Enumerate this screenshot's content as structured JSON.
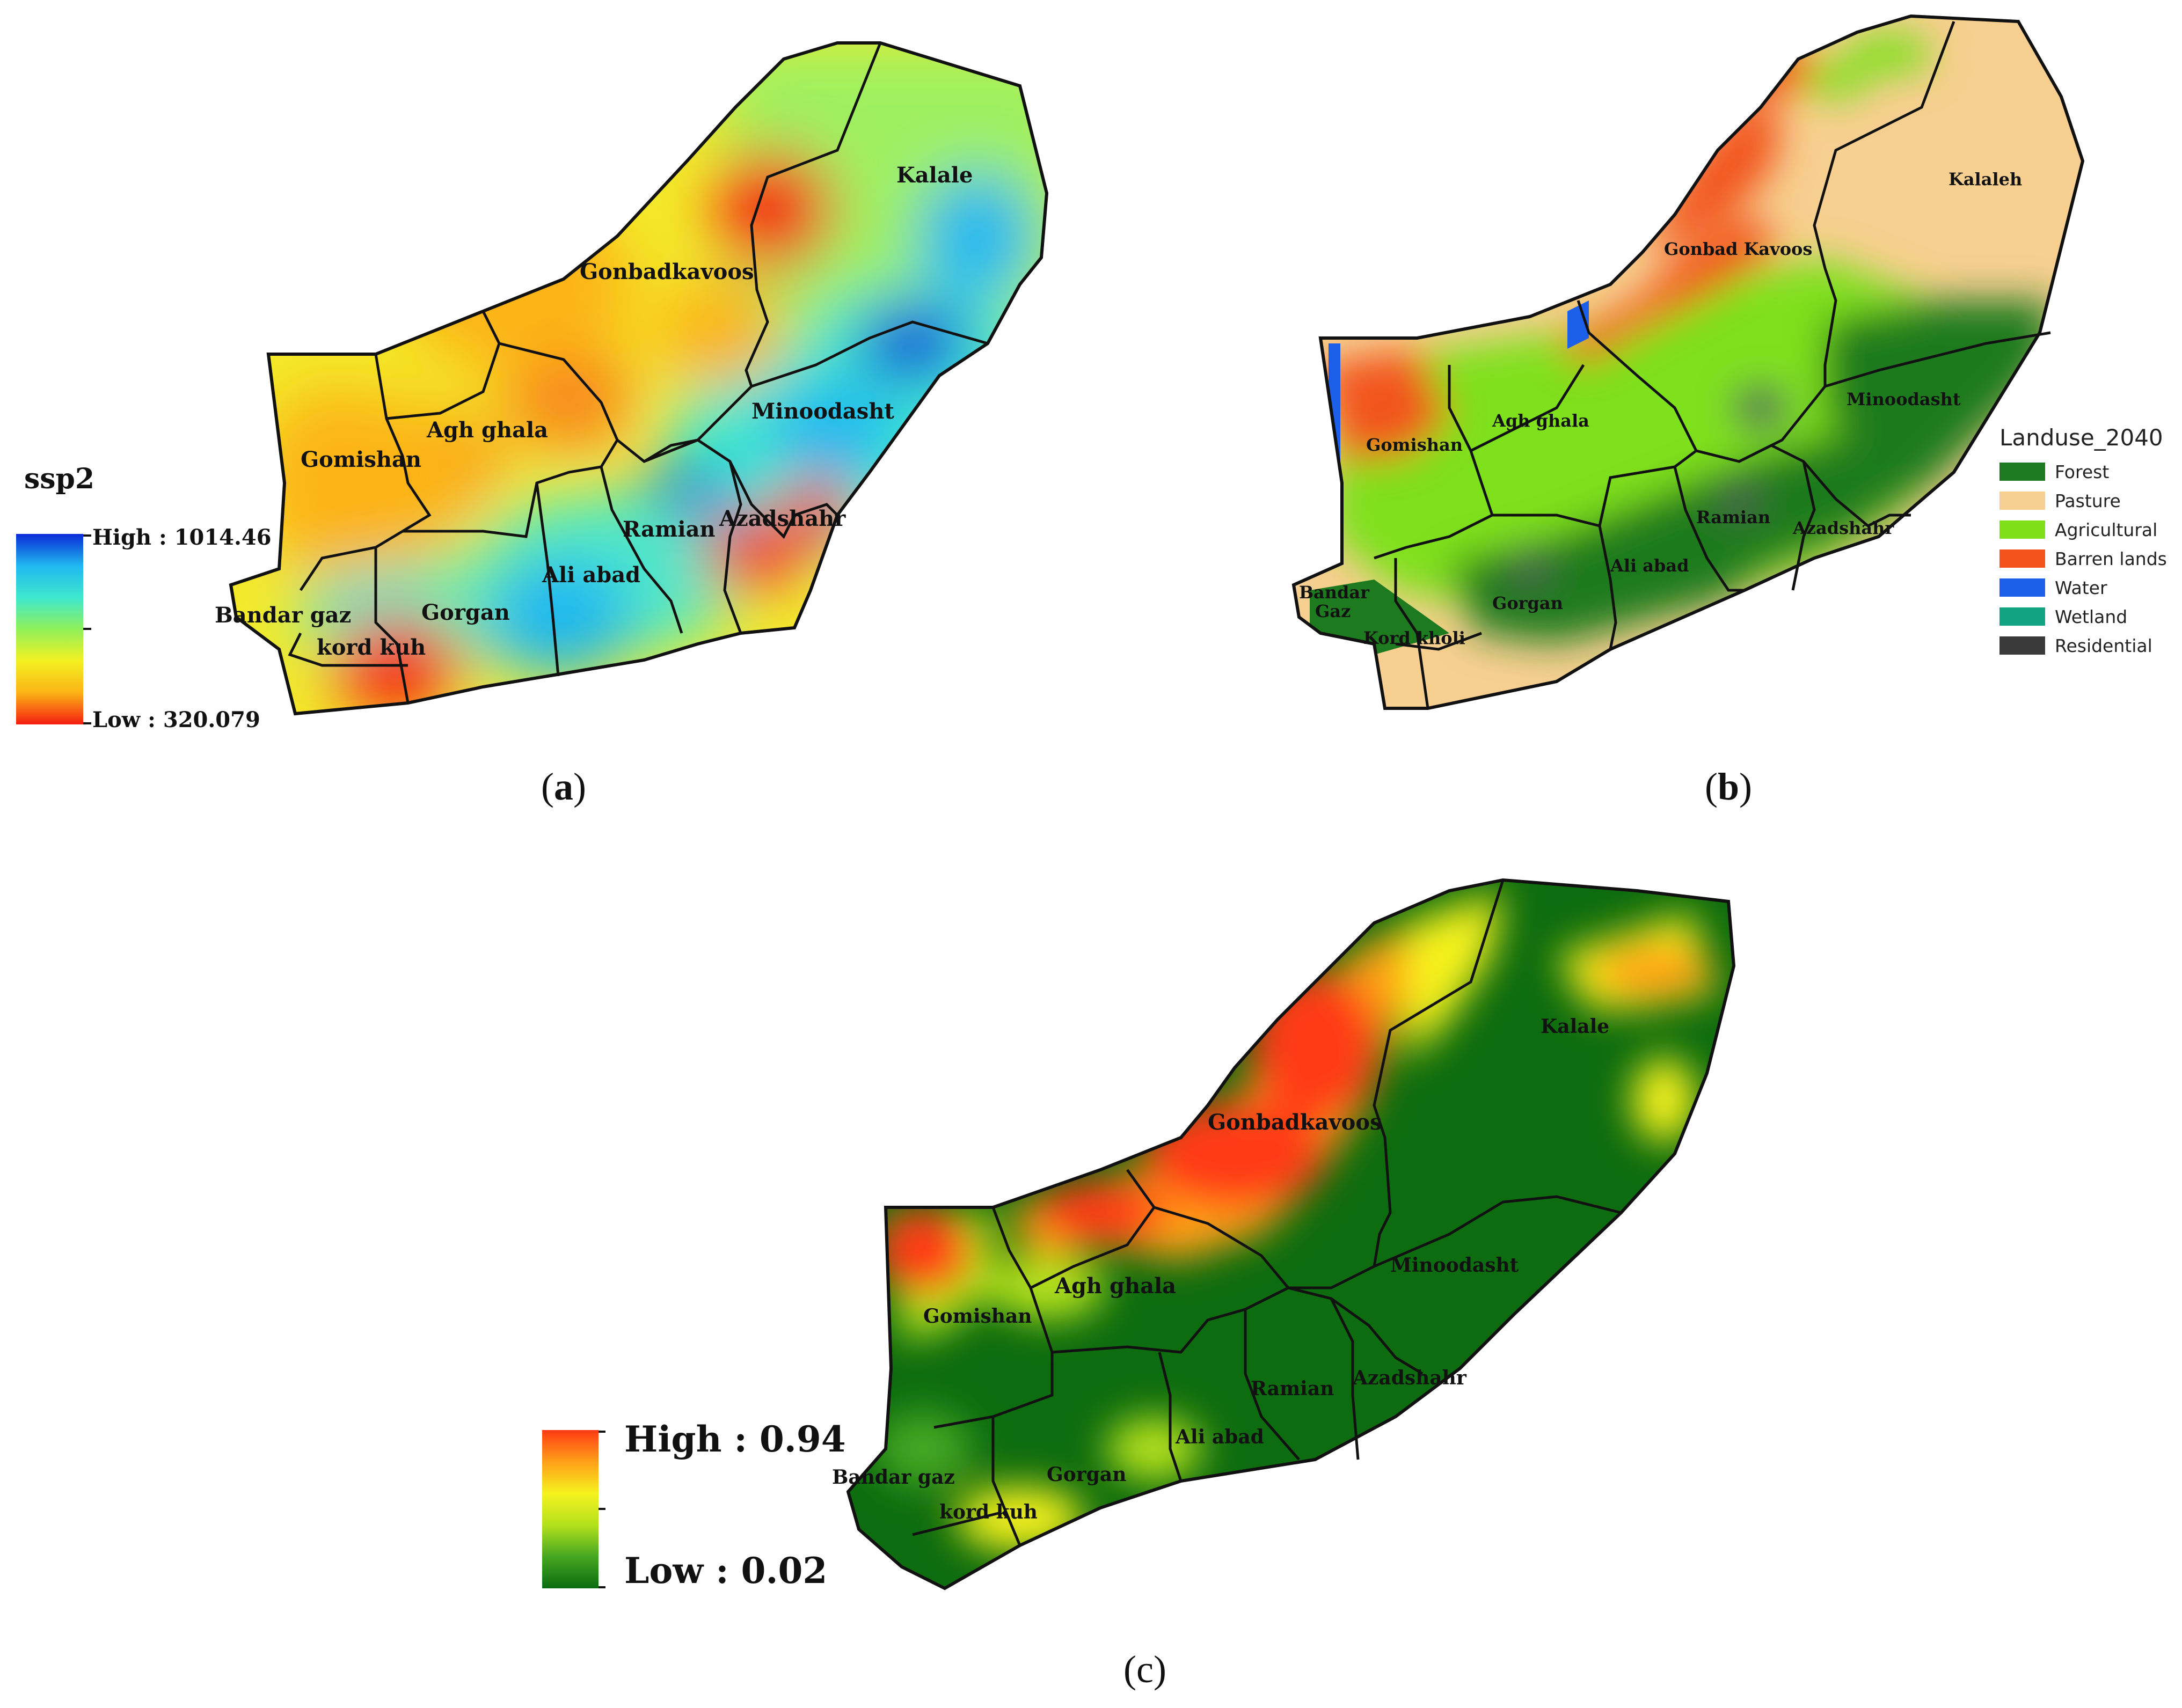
{
  "panels": {
    "a": {
      "caption_open": "(",
      "caption_letter": "a",
      "caption_close": ")",
      "legend": {
        "title": "ssp2",
        "high": "High : 1014.46",
        "low": "Low : 320.079"
      },
      "labels": [
        "Kalale",
        "Gonbadkavoos",
        "Minoodasht",
        "Agh ghala",
        "Gomishan",
        "Ramian",
        "Azadshahr",
        "Ali abad",
        "Bandar gaz",
        "Gorgan",
        "kord kuh"
      ]
    },
    "b": {
      "caption_open": "(",
      "caption_letter": "b",
      "caption_close": ")",
      "legend": {
        "title": "Landuse_2040",
        "classes": [
          {
            "name": "Forest",
            "color": "#1e7a1e"
          },
          {
            "name": "Pasture",
            "color": "#f7cf90"
          },
          {
            "name": "Agricultural",
            "color": "#7fe01a"
          },
          {
            "name": "Barren lands",
            "color": "#f2541b"
          },
          {
            "name": "Water",
            "color": "#1c5fe8"
          },
          {
            "name": "Wetland",
            "color": "#12a383"
          },
          {
            "name": "Residential",
            "color": "#3a3a3a"
          }
        ]
      },
      "labels": [
        "Kalaleh",
        "Gonbad Kavoos",
        "Minoodasht",
        "Agh ghala",
        "Gomishan",
        "Ramian",
        "Azadshahr",
        "Ali abad",
        "Bandar",
        "Gaz",
        "Gorgan",
        "Kord kholi"
      ]
    },
    "c": {
      "caption": "(c)",
      "legend": {
        "high": "High : 0.94",
        "low": "Low : 0.02"
      },
      "labels": [
        "Kalale",
        "Gonbadkavoos",
        "Minoodasht",
        "Agh ghala",
        "Gomishan",
        "Ramian",
        "Azadshahr",
        "Ali abad",
        "Bandar gaz",
        "Gorgan",
        "kord kuh"
      ]
    }
  },
  "colors": {
    "ssp2_ramp": [
      "#0a2ad6",
      "#1fb8f0",
      "#3ee8cf",
      "#8ff05a",
      "#f3f021",
      "#fcb416",
      "#f41d10"
    ],
    "risk_ramp": [
      "#ff3a14",
      "#ffa019",
      "#f6f21f",
      "#b3e11c",
      "#45a722",
      "#0d6c0f"
    ]
  }
}
